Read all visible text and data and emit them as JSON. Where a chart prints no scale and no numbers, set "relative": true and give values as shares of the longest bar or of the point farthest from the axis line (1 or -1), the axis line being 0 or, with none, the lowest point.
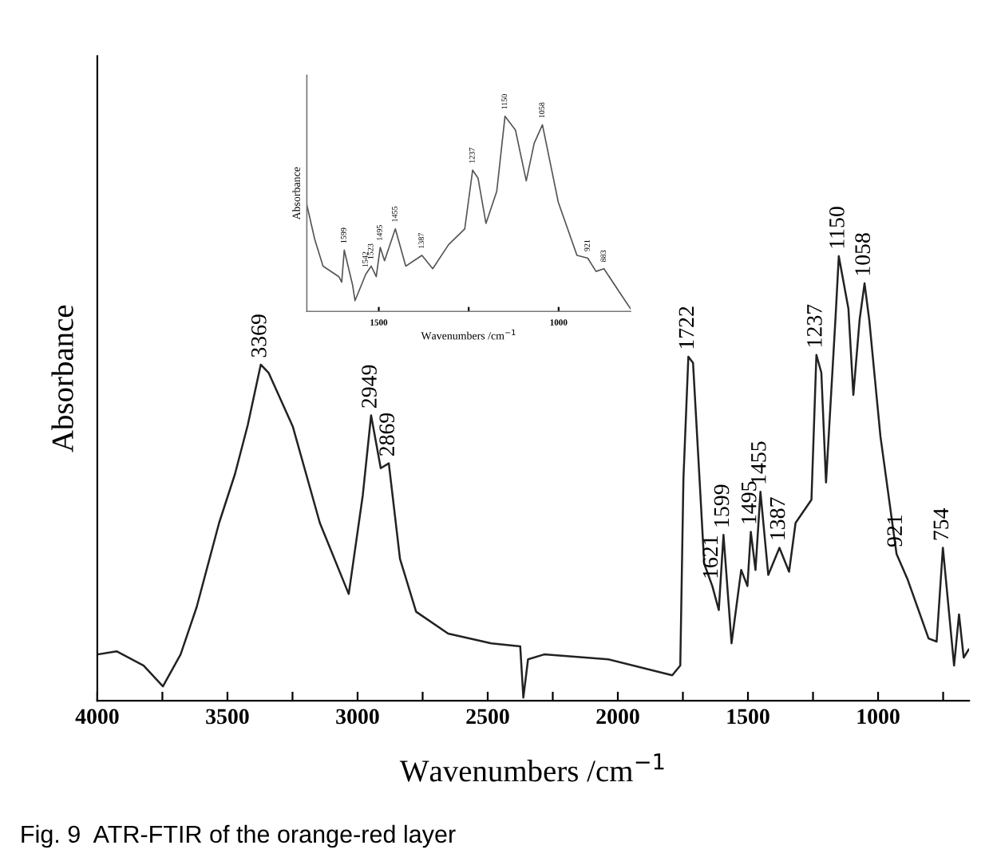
{
  "chart_data": [
    {
      "type": "line",
      "relative": true,
      "xlabel": "Wavenumbers /cm$^{−1}$",
      "ylabel": "Absorbance",
      "xlim": [
        4000,
        650
      ],
      "xticks": [
        4000,
        {
          "value": 3750,
          "label": null
        },
        3500,
        {
          "value": 3250,
          "label": null
        },
        3000,
        {
          "value": 2750,
          "label": null
        },
        2500,
        {
          "value": 2250,
          "label": null
        },
        2000,
        {
          "value": 1750,
          "label": null
        },
        1500,
        {
          "value": 1250,
          "label": null
        },
        1000,
        {
          "value": 750,
          "label": null
        }
      ],
      "x": [
        4000,
        3926,
        3822,
        3748,
        3680,
        3618,
        3532,
        3471,
        3422,
        3372,
        3342,
        3249,
        3145,
        3034,
        2980,
        2948,
        2911,
        2880,
        2837,
        2775,
        2652,
        2486,
        2375,
        2363,
        2345,
        2283,
        2037,
        1791,
        1760,
        1748,
        1729,
        1711,
        1686,
        1668,
        1637,
        1612,
        1594,
        1563,
        1526,
        1502,
        1489,
        1471,
        1452,
        1422,
        1379,
        1342,
        1317,
        1256,
        1237,
        1218,
        1200,
        1163,
        1151,
        1114,
        1095,
        1071,
        1052,
        1034,
        991,
        929,
        886,
        806,
        775,
        751,
        708,
        689,
        671,
        652
      ],
      "series": [
        {
          "color": "#222222",
          "values": [
            0.104,
            0.111,
            0.079,
            0.032,
            0.104,
            0.211,
            0.4,
            0.51,
            0.62,
            0.756,
            0.738,
            0.617,
            0.4,
            0.24,
            0.462,
            0.642,
            0.523,
            0.534,
            0.319,
            0.2,
            0.151,
            0.129,
            0.122,
            0.007,
            0.093,
            0.104,
            0.093,
            0.057,
            0.079,
            0.498,
            0.774,
            0.76,
            0.498,
            0.308,
            0.258,
            0.204,
            0.373,
            0.129,
            0.294,
            0.258,
            0.38,
            0.294,
            0.47,
            0.283,
            0.344,
            0.29,
            0.4,
            0.452,
            0.778,
            0.738,
            0.491,
            0.867,
            1.0,
            0.882,
            0.688,
            0.857,
            0.939,
            0.857,
            0.595,
            0.33,
            0.272,
            0.14,
            0.133,
            0.344,
            0.079,
            0.194,
            0.097,
            0.115
          ]
        }
      ],
      "annotations": [
        {
          "text": "3369",
          "x": 3372,
          "y": 0.756
        },
        {
          "text": "2949",
          "x": 2948,
          "y": 0.642
        },
        {
          "text": "2869",
          "x": 2880,
          "y": 0.534
        },
        {
          "text": "1722",
          "x": 1729,
          "y": 0.774
        },
        {
          "text": "1621",
          "x": 1637,
          "y": 0.258
        },
        {
          "text": "1599",
          "x": 1594,
          "y": 0.373
        },
        {
          "text": "1495",
          "x": 1489,
          "y": 0.38
        },
        {
          "text": "1455",
          "x": 1452,
          "y": 0.47
        },
        {
          "text": "1387",
          "x": 1379,
          "y": 0.344
        },
        {
          "text": "1237",
          "x": 1237,
          "y": 0.778
        },
        {
          "text": "1150",
          "x": 1151,
          "y": 1.0
        },
        {
          "text": "1058",
          "x": 1052,
          "y": 0.939
        },
        {
          "text": "921",
          "x": 929,
          "y": 0.33
        },
        {
          "text": "754",
          "x": 751,
          "y": 0.344
        },
        "Fig. 9  ATR-FTIR of the orange-red layer"
      ]
    },
    {
      "type": "line",
      "relative": true,
      "xlabel": "Wavenumbers /cm$^{−1}$",
      "ylabel": "Absorbance",
      "xlim": [
        1700,
        800
      ],
      "xticks": [
        1500,
        {
          "value": 1250,
          "label": null
        },
        1000
      ],
      "x": [
        1700,
        1678,
        1655,
        1611,
        1603,
        1596,
        1573,
        1566,
        1536,
        1521,
        1507,
        1496,
        1484,
        1454,
        1425,
        1380,
        1350,
        1306,
        1261,
        1239,
        1224,
        1202,
        1172,
        1149,
        1120,
        1090,
        1068,
        1045,
        1001,
        949,
        919,
        896,
        874,
        830,
        800
      ],
      "series": [
        {
          "color": "#555555",
          "values": [
            0.546,
            0.369,
            0.232,
            0.178,
            0.15,
            0.314,
            0.137,
            0.055,
            0.191,
            0.232,
            0.178,
            0.328,
            0.26,
            0.423,
            0.232,
            0.287,
            0.219,
            0.342,
            0.423,
            0.724,
            0.683,
            0.451,
            0.615,
            1.0,
            0.929,
            0.669,
            0.861,
            0.956,
            0.56,
            0.287,
            0.273,
            0.205,
            0.219,
            0.096,
            0.014
          ]
        }
      ],
      "annotations": [
        {
          "text": "1599",
          "x": 1596,
          "y": 0.314
        },
        {
          "text": "1542",
          "x": 1536,
          "y": 0.191
        },
        {
          "text": "1523",
          "x": 1521,
          "y": 0.232
        },
        {
          "text": "1495",
          "x": 1496,
          "y": 0.328
        },
        {
          "text": "1455",
          "x": 1454,
          "y": 0.423
        },
        {
          "text": "1387",
          "x": 1380,
          "y": 0.287
        },
        {
          "text": "1237",
          "x": 1239,
          "y": 0.724
        },
        {
          "text": "1150",
          "x": 1149,
          "y": 1.0
        },
        {
          "text": "1058",
          "x": 1045,
          "y": 0.956
        },
        {
          "text": "921",
          "x": 919,
          "y": 0.273
        },
        {
          "text": "883",
          "x": 874,
          "y": 0.219
        }
      ]
    }
  ]
}
